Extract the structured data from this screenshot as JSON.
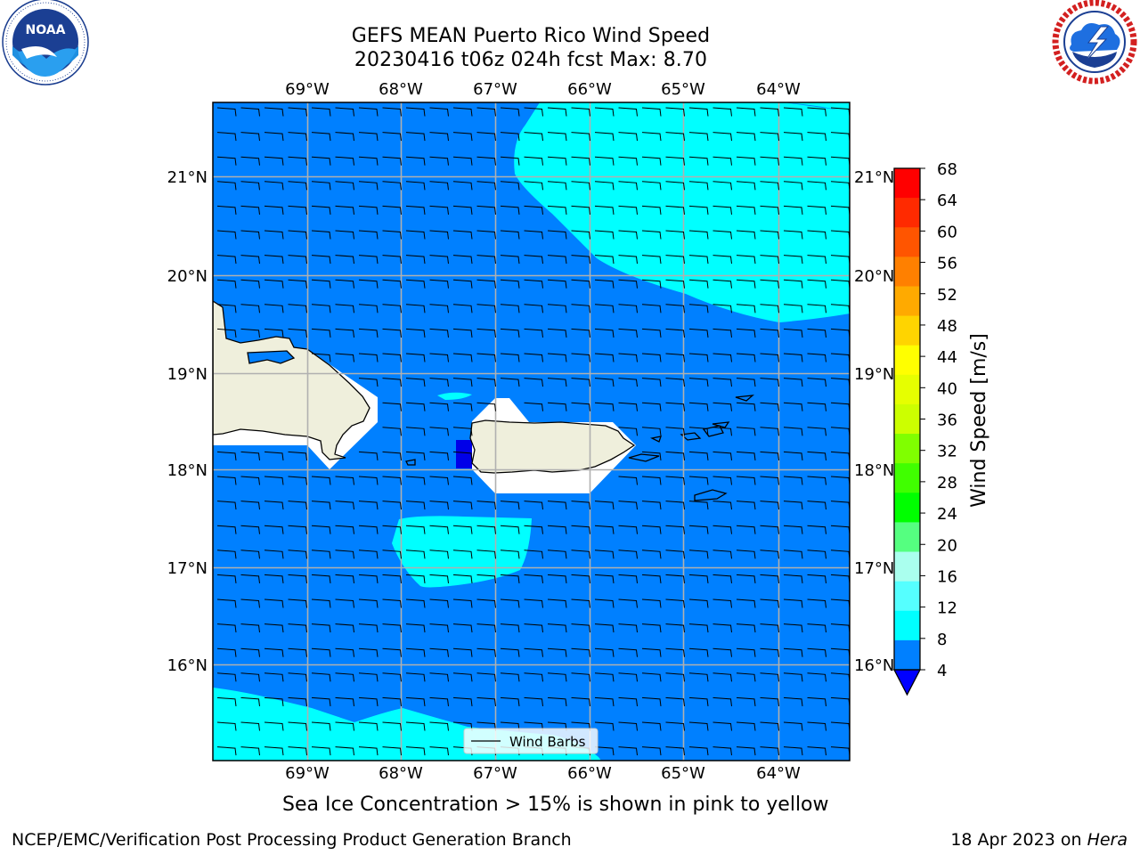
{
  "header": {
    "title_line1": "GEFS MEAN Puerto Rico Wind Speed",
    "title_line2": "20230416 t06z 024h fcst   Max: 8.70"
  },
  "logos": {
    "left": {
      "name": "NOAA",
      "ring_text": "NATIONAL OCEANIC AND ATMOSPHERIC ADMINISTRATION · U.S. DEPARTMENT OF COMMERCE"
    },
    "right": {
      "name": "NATIONAL WEATHER SERVICE"
    }
  },
  "map": {
    "lon_labels": [
      "69°W",
      "68°W",
      "67°W",
      "66°W",
      "65°W",
      "64°W"
    ],
    "lat_labels": [
      "21°N",
      "20°N",
      "19°N",
      "18°N",
      "17°N",
      "16°N"
    ],
    "legend_label": "Wind Barbs",
    "colors": {
      "ocean_4_8": "#0080ff",
      "band_8_12": "#00ffff",
      "below_4": "#0000e8",
      "land": "#efefdc"
    }
  },
  "colorbar": {
    "label": "Wind Speed [m/s]",
    "ticks": [
      "68",
      "64",
      "60",
      "56",
      "52",
      "48",
      "44",
      "40",
      "36",
      "32",
      "28",
      "24",
      "20",
      "16",
      "12",
      "8",
      "4"
    ],
    "colors": [
      "#ff0000",
      "#ff2a00",
      "#ff5500",
      "#ff8000",
      "#ffaa00",
      "#ffd400",
      "#ffff00",
      "#e6ff00",
      "#ccff00",
      "#80ff00",
      "#40ff00",
      "#00ff00",
      "#55ff80",
      "#aaffee",
      "#55ffff",
      "#00ffff",
      "#0080ff"
    ],
    "extend_color": "#0000ff"
  },
  "caption": "Sea Ice Concentration > 15% is shown in pink to yellow",
  "footer": {
    "left": "NCEP/EMC/Verification Post Processing Product Generation Branch",
    "right_prefix": "18 Apr 2023 on ",
    "right_machine": "Hera"
  }
}
